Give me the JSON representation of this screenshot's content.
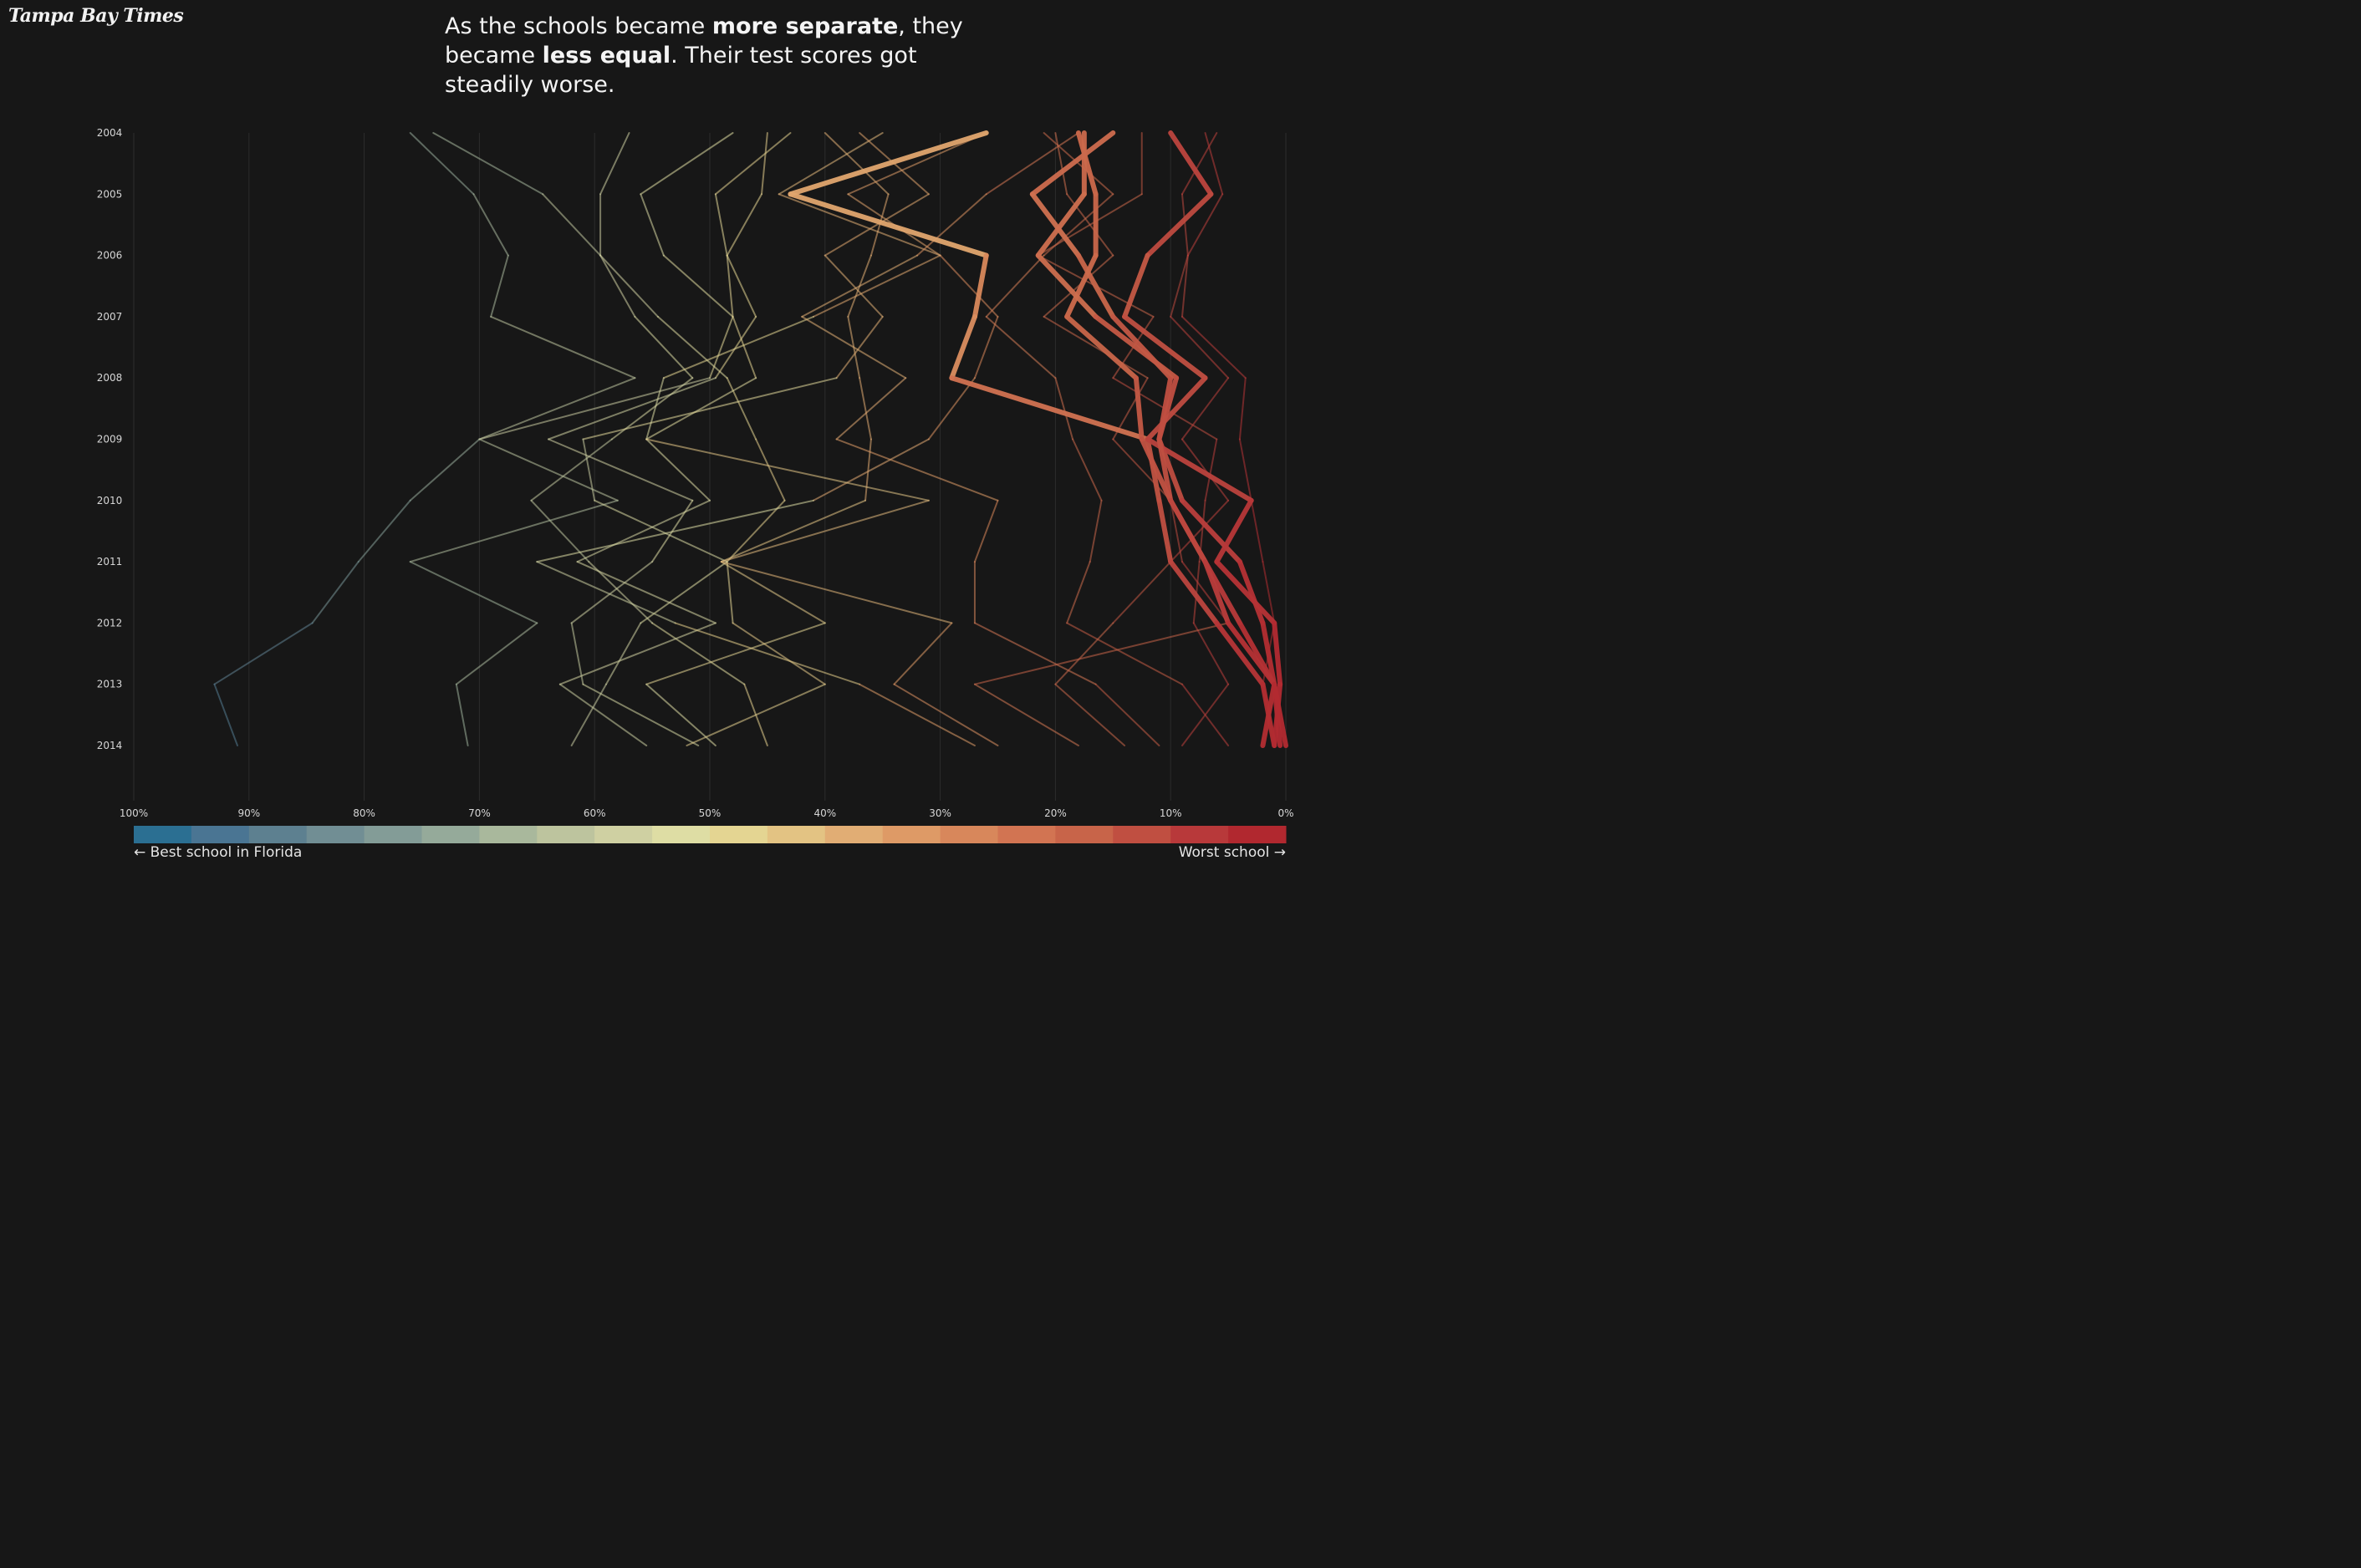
{
  "brand": {
    "logo_text": "Tampa Bay Times"
  },
  "headline": {
    "part1": "As the schools became ",
    "bold1": "more separate",
    "part2": ", they became ",
    "bold2": "less equal",
    "part3": ". Their test scores got steadily worse."
  },
  "legend": {
    "left_label": "← Best school in Florida",
    "right_label": "Worst school →",
    "colors": [
      "#2b6f92",
      "#4a7593",
      "#5d8090",
      "#718e94",
      "#839c97",
      "#95aa9a",
      "#a9b89c",
      "#bdc49e",
      "#cfd0a2",
      "#dedda4",
      "#e4d592",
      "#e3c383",
      "#e1ad74",
      "#de9a66",
      "#d8875b",
      "#d27452",
      "#c86449",
      "#c04f41",
      "#b8393a",
      "#b1282f"
    ]
  },
  "chart_data": {
    "type": "line",
    "title": "",
    "xlabel": "",
    "ylabel": "",
    "x_axis": {
      "ticks": [
        "100%",
        "90%",
        "80%",
        "70%",
        "60%",
        "50%",
        "40%",
        "30%",
        "20%",
        "10%",
        "0%"
      ],
      "range": [
        100,
        0
      ],
      "unit": "percentile rank among Florida schools"
    },
    "years": [
      "2004",
      "2005",
      "2006",
      "2007",
      "2008",
      "2009",
      "2010",
      "2011",
      "2012",
      "2013",
      "2014"
    ],
    "grid": "vertical",
    "series": [
      {
        "highlight": false,
        "values": [
          76,
          70.5,
          67.5,
          69,
          56.5,
          70,
          76,
          80.5,
          84.5,
          93,
          91
        ]
      },
      {
        "highlight": false,
        "values": [
          74,
          64.5,
          59.5,
          54.5,
          48.5,
          46,
          43.5,
          48.5,
          56,
          59,
          62
        ]
      },
      {
        "highlight": false,
        "values": [
          57,
          59.5,
          59.5,
          56.5,
          51.5,
          58.5,
          65.5,
          60.5,
          55,
          47,
          45
        ]
      },
      {
        "highlight": false,
        "values": [
          48,
          56,
          54,
          48,
          50,
          70,
          58,
          76,
          65,
          72,
          71
        ]
      },
      {
        "highlight": false,
        "values": [
          45,
          45.5,
          48.5,
          48,
          46,
          55.5,
          50,
          61.5,
          49.5,
          63,
          55.5
        ]
      },
      {
        "highlight": false,
        "values": [
          43,
          49.5,
          48.5,
          46,
          49.5,
          64,
          51.5,
          55,
          62,
          61,
          51
        ]
      },
      {
        "highlight": false,
        "values": [
          40,
          34.5,
          36,
          38,
          37,
          36,
          36.5,
          49,
          40,
          55.5,
          49.5
        ]
      },
      {
        "highlight": false,
        "values": [
          35,
          44,
          30,
          25,
          27,
          31,
          41,
          65,
          53,
          37,
          27
        ]
      },
      {
        "highlight": false,
        "values": [
          37,
          31,
          40,
          35,
          39,
          61,
          60,
          48.5,
          48,
          40,
          52
        ]
      },
      {
        "highlight": false,
        "values": [
          26,
          38,
          30,
          41,
          54,
          55.5,
          31,
          49,
          29,
          34,
          25
        ]
      },
      {
        "highlight": false,
        "values": [
          18,
          26,
          32,
          42,
          33,
          39,
          25,
          27,
          27,
          16.5,
          11
        ]
      },
      {
        "highlight": false,
        "values": [
          21,
          15,
          21,
          26,
          20,
          18.5,
          16,
          17,
          19,
          9,
          5
        ]
      },
      {
        "highlight": false,
        "values": [
          12.5,
          12.5,
          21.5,
          11.5,
          15,
          6,
          7,
          7.5,
          8,
          5,
          9
        ]
      },
      {
        "highlight": false,
        "values": [
          6,
          9,
          8.5,
          10,
          5,
          9,
          5,
          10,
          15,
          20,
          14
        ]
      },
      {
        "highlight": false,
        "values": [
          20,
          19,
          15,
          21,
          12,
          15,
          10,
          9,
          5,
          27,
          18
        ]
      },
      {
        "highlight": false,
        "values": [
          7,
          5.5,
          8.5,
          9,
          3.5,
          4,
          3,
          2,
          1,
          2,
          1
        ]
      },
      {
        "highlight": true,
        "values": [
          26,
          43,
          26,
          27,
          29,
          12,
          11,
          10,
          6,
          2,
          1
        ]
      },
      {
        "highlight": true,
        "values": [
          15,
          22,
          18,
          15,
          10,
          11,
          9,
          4,
          2,
          1,
          2
        ]
      },
      {
        "highlight": true,
        "values": [
          18,
          16.5,
          16.5,
          19,
          13,
          12.5,
          10,
          7,
          4,
          1,
          0.5
        ]
      },
      {
        "highlight": true,
        "values": [
          10,
          6.5,
          12,
          14,
          7,
          12,
          3,
          6,
          1,
          0.5,
          1
        ]
      },
      {
        "highlight": true,
        "values": [
          17.5,
          17.5,
          21.5,
          16.5,
          9.5,
          11,
          10,
          7,
          5,
          1,
          0
        ]
      }
    ]
  }
}
